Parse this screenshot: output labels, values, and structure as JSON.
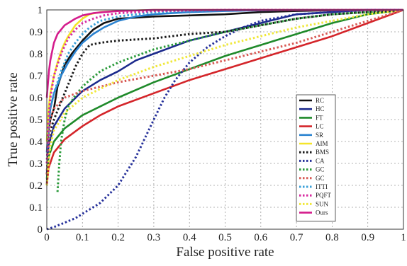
{
  "chart_data": {
    "type": "line",
    "title": "",
    "xlabel": "False positive rate",
    "ylabel": "True positive rate",
    "xlim": [
      0,
      1
    ],
    "ylim": [
      0,
      1
    ],
    "xticks": [
      "0",
      "0.1",
      "0.2",
      "0.3",
      "0.4",
      "0.5",
      "0.6",
      "0.7",
      "0.8",
      "0.9",
      "1"
    ],
    "yticks": [
      "0",
      "0.1",
      "0.2",
      "0.3",
      "0.4",
      "0.5",
      "0.6",
      "0.7",
      "0.8",
      "0.9",
      "1"
    ],
    "grid": true,
    "legend_position": "right",
    "series": [
      {
        "name": "RC",
        "color": "#111111",
        "style": "solid",
        "x": [
          0,
          0.005,
          0.01,
          0.02,
          0.03,
          0.05,
          0.07,
          0.1,
          0.13,
          0.16,
          0.2,
          0.3,
          0.4,
          0.5,
          0.6,
          0.7,
          0.8,
          0.9,
          1
        ],
        "y": [
          0.2,
          0.45,
          0.5,
          0.55,
          0.65,
          0.75,
          0.8,
          0.86,
          0.91,
          0.94,
          0.96,
          0.97,
          0.975,
          0.98,
          0.99,
          0.995,
          0.998,
          1,
          1
        ]
      },
      {
        "name": "HC",
        "color": "#1c2a8c",
        "style": "solid",
        "x": [
          0,
          0.005,
          0.02,
          0.05,
          0.1,
          0.15,
          0.2,
          0.25,
          0.3,
          0.35,
          0.4,
          0.45,
          0.5,
          0.55,
          0.6,
          0.65,
          0.7,
          0.8,
          0.9,
          1
        ],
        "y": [
          0.25,
          0.38,
          0.47,
          0.55,
          0.63,
          0.68,
          0.72,
          0.77,
          0.8,
          0.83,
          0.86,
          0.88,
          0.9,
          0.92,
          0.94,
          0.96,
          0.98,
          0.99,
          1,
          1
        ]
      },
      {
        "name": "FT",
        "color": "#1f8a2a",
        "style": "solid",
        "x": [
          0,
          0.005,
          0.02,
          0.05,
          0.1,
          0.15,
          0.2,
          0.3,
          0.4,
          0.5,
          0.6,
          0.7,
          0.8,
          0.9,
          1
        ],
        "y": [
          0.23,
          0.33,
          0.4,
          0.46,
          0.52,
          0.56,
          0.6,
          0.67,
          0.73,
          0.79,
          0.84,
          0.89,
          0.94,
          0.98,
          1
        ]
      },
      {
        "name": "LC",
        "color": "#d4252a",
        "style": "solid",
        "x": [
          0,
          0.005,
          0.02,
          0.05,
          0.1,
          0.15,
          0.2,
          0.3,
          0.4,
          0.5,
          0.6,
          0.7,
          0.8,
          0.9,
          1
        ],
        "y": [
          0.2,
          0.28,
          0.35,
          0.41,
          0.47,
          0.52,
          0.56,
          0.62,
          0.68,
          0.73,
          0.78,
          0.83,
          0.88,
          0.94,
          1
        ]
      },
      {
        "name": "SR",
        "color": "#2a82d0",
        "style": "solid",
        "x": [
          0,
          0.005,
          0.01,
          0.02,
          0.04,
          0.06,
          0.08,
          0.1,
          0.13,
          0.16,
          0.2,
          0.25,
          0.3,
          0.4,
          0.5,
          0.6,
          0.7,
          0.8,
          1
        ],
        "y": [
          0.35,
          0.48,
          0.55,
          0.62,
          0.7,
          0.76,
          0.81,
          0.85,
          0.89,
          0.92,
          0.95,
          0.97,
          0.98,
          0.99,
          0.995,
          0.998,
          1,
          1,
          1
        ]
      },
      {
        "name": "AIM",
        "color": "#f5e52a",
        "style": "solid",
        "x": [
          0,
          0.005,
          0.01,
          0.02,
          0.03,
          0.04,
          0.05,
          0.06,
          0.08,
          0.1,
          0.12,
          0.15,
          0.2,
          0.3,
          0.4,
          0.6,
          1
        ],
        "y": [
          0.4,
          0.55,
          0.62,
          0.7,
          0.76,
          0.81,
          0.85,
          0.88,
          0.93,
          0.96,
          0.98,
          0.99,
          0.995,
          1,
          1,
          1,
          1
        ]
      },
      {
        "name": "BMS",
        "color": "#1a1a1a",
        "style": "dotted",
        "x": [
          0,
          0.005,
          0.01,
          0.02,
          0.04,
          0.06,
          0.08,
          0.1,
          0.12,
          0.15,
          0.2,
          0.3,
          0.4,
          0.5,
          0.6,
          0.7,
          0.8,
          0.9,
          1
        ],
        "y": [
          0.25,
          0.4,
          0.45,
          0.5,
          0.58,
          0.66,
          0.74,
          0.8,
          0.84,
          0.85,
          0.86,
          0.87,
          0.89,
          0.9,
          0.93,
          0.96,
          0.98,
          0.99,
          1
        ]
      },
      {
        "name": "CA",
        "color": "#25309a",
        "style": "dotted",
        "x": [
          0,
          0.02,
          0.05,
          0.08,
          0.1,
          0.15,
          0.2,
          0.25,
          0.3,
          0.33,
          0.36,
          0.4,
          0.45,
          0.5,
          0.55,
          0.6,
          0.7,
          0.8,
          0.9,
          1
        ],
        "y": [
          0,
          0.01,
          0.03,
          0.05,
          0.07,
          0.12,
          0.2,
          0.33,
          0.5,
          0.6,
          0.68,
          0.76,
          0.83,
          0.88,
          0.92,
          0.95,
          0.98,
          0.99,
          1,
          1
        ]
      },
      {
        "name": "GC",
        "color": "#2a9a3a",
        "style": "dotted",
        "x": [
          0.03,
          0.035,
          0.04,
          0.05,
          0.06,
          0.08,
          0.1,
          0.12,
          0.15,
          0.2,
          0.3,
          0.4,
          0.5,
          0.6,
          0.7,
          0.8,
          0.9,
          1
        ],
        "y": [
          0.17,
          0.3,
          0.4,
          0.5,
          0.56,
          0.61,
          0.65,
          0.68,
          0.72,
          0.76,
          0.82,
          0.86,
          0.9,
          0.93,
          0.96,
          0.98,
          0.99,
          1
        ]
      },
      {
        "name": "GC",
        "color": "#d85a55",
        "style": "dotted",
        "x": [
          0,
          0.01,
          0.02,
          0.05,
          0.1,
          0.2,
          0.3,
          0.4,
          0.5,
          0.6,
          0.7,
          0.8,
          0.9,
          1
        ],
        "y": [
          0.25,
          0.5,
          0.55,
          0.6,
          0.63,
          0.67,
          0.7,
          0.73,
          0.77,
          0.81,
          0.85,
          0.9,
          0.95,
          1
        ]
      },
      {
        "name": "ITTI",
        "color": "#3aa0d8",
        "style": "dotted",
        "x": [
          0,
          0.005,
          0.01,
          0.02,
          0.04,
          0.06,
          0.08,
          0.1,
          0.12,
          0.15,
          0.2,
          0.3,
          0.5,
          0.7,
          1
        ],
        "y": [
          0.3,
          0.45,
          0.55,
          0.62,
          0.72,
          0.8,
          0.85,
          0.89,
          0.92,
          0.95,
          0.97,
          0.99,
          1,
          1,
          1
        ]
      },
      {
        "name": "PQFT",
        "color": "#d82aa0",
        "style": "dotted",
        "x": [
          0,
          0.005,
          0.01,
          0.02,
          0.04,
          0.06,
          0.08,
          0.1,
          0.13,
          0.16,
          0.2,
          0.3,
          0.5,
          0.7,
          1
        ],
        "y": [
          0.3,
          0.5,
          0.6,
          0.7,
          0.8,
          0.87,
          0.91,
          0.94,
          0.96,
          0.975,
          0.985,
          0.995,
          1,
          1,
          1
        ]
      },
      {
        "name": "SUN",
        "color": "#f0e83a",
        "style": "dotted",
        "x": [
          0,
          0.005,
          0.01,
          0.02,
          0.05,
          0.1,
          0.15,
          0.2,
          0.3,
          0.4,
          0.5,
          0.6,
          0.7,
          0.8,
          0.9,
          1
        ],
        "y": [
          0.2,
          0.3,
          0.38,
          0.45,
          0.53,
          0.6,
          0.64,
          0.68,
          0.74,
          0.79,
          0.84,
          0.88,
          0.92,
          0.95,
          0.98,
          1
        ]
      },
      {
        "name": "Ours",
        "color": "#d41c8c",
        "style": "solid",
        "x": [
          0,
          0.003,
          0.006,
          0.01,
          0.015,
          0.02,
          0.03,
          0.04,
          0.05,
          0.06,
          0.08,
          0.1,
          0.13,
          0.16,
          0.2,
          0.3,
          0.5,
          0.7,
          1
        ],
        "y": [
          0.6,
          0.66,
          0.72,
          0.77,
          0.81,
          0.85,
          0.89,
          0.91,
          0.93,
          0.94,
          0.96,
          0.975,
          0.985,
          0.99,
          0.995,
          1,
          1,
          1,
          1
        ]
      }
    ]
  }
}
